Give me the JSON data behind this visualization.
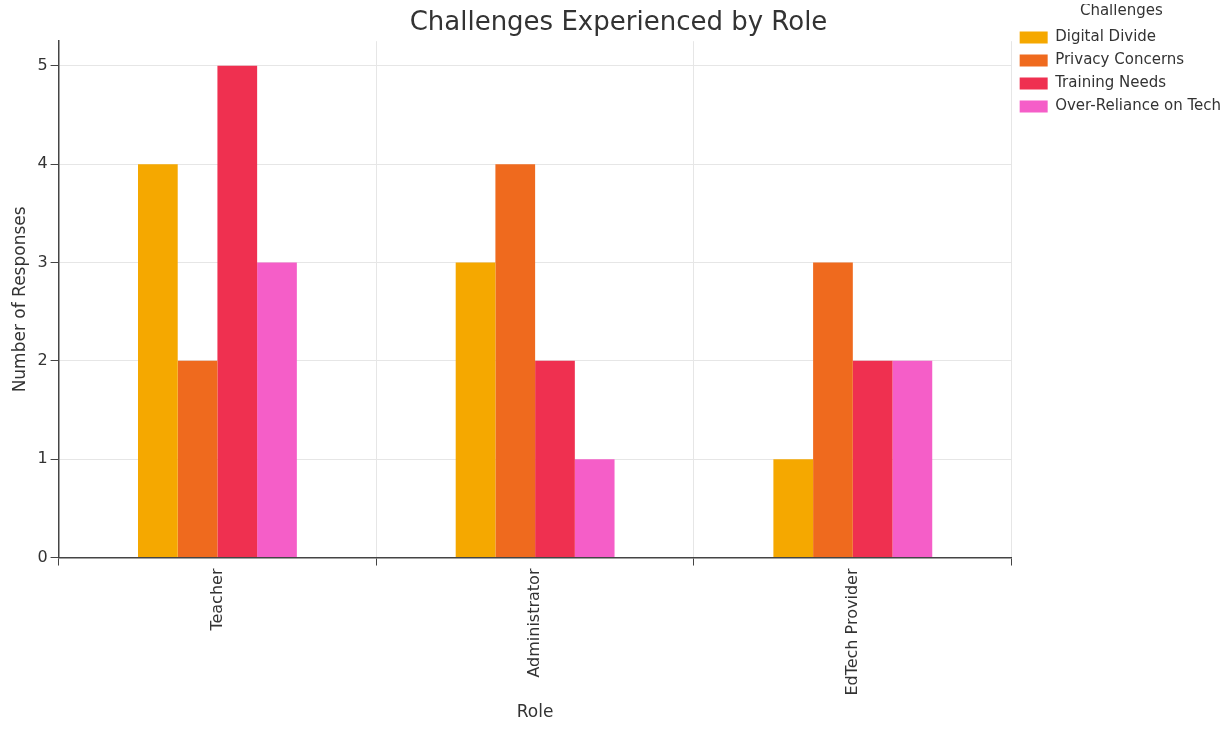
{
  "chart_data": {
    "type": "bar",
    "title": "Challenges Experienced by Role",
    "xlabel": "Role",
    "ylabel": "Number of Responses",
    "legend_title": "Challenges",
    "categories": [
      "Teacher",
      "Administrator",
      "EdTech Provider"
    ],
    "series": [
      {
        "name": "Digital Divide",
        "color": "#f5a800",
        "values": [
          4,
          3,
          1
        ]
      },
      {
        "name": "Privacy Concerns",
        "color": "#ef6a1e",
        "values": [
          2,
          4,
          3
        ]
      },
      {
        "name": "Training Needs",
        "color": "#ef3050",
        "values": [
          5,
          2,
          2
        ]
      },
      {
        "name": "Over-Reliance on Tech",
        "color": "#f55ec8",
        "values": [
          3,
          1,
          2
        ]
      }
    ],
    "ylim": [
      0,
      5.25
    ],
    "yticks": [
      0,
      1,
      2,
      3,
      4,
      5
    ],
    "grid": true,
    "legend": "top right"
  }
}
